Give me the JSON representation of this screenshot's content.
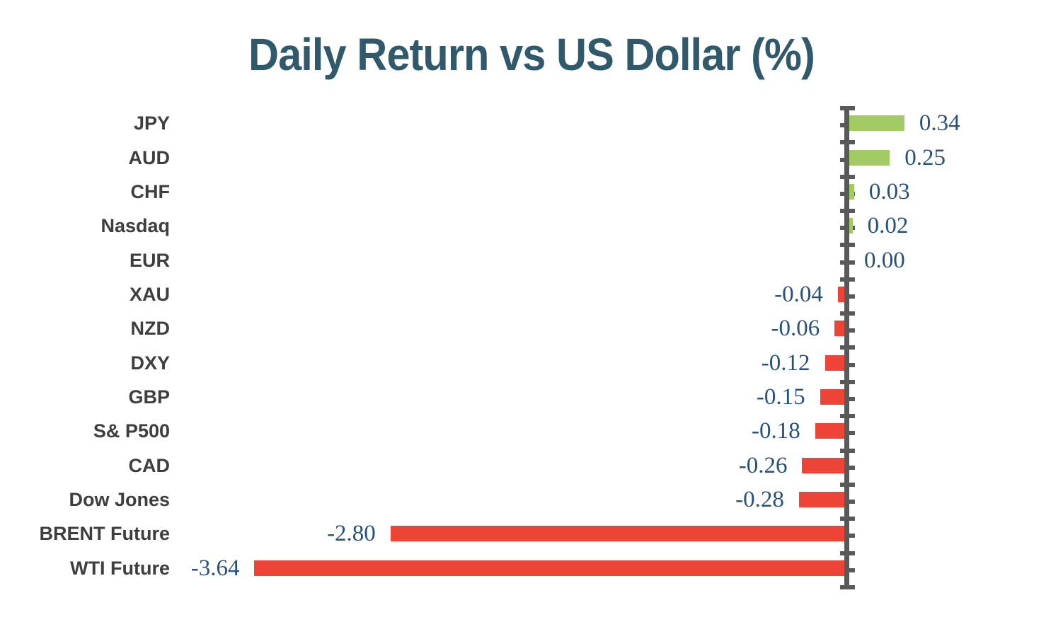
{
  "chart_data": {
    "type": "bar",
    "orientation": "horizontal",
    "title": "Daily Return vs US Dollar (%)",
    "xlabel": "",
    "ylabel": "",
    "grid": false,
    "legend": "none",
    "axis_range": [
      -3.64,
      0.34
    ],
    "categories": [
      "JPY",
      "AUD",
      "CHF",
      "Nasdaq",
      "EUR",
      "XAU",
      "NZD",
      "DXY",
      "GBP",
      "S& P500",
      "CAD",
      "Dow Jones",
      "BRENT Future",
      "WTI Future"
    ],
    "values": [
      0.34,
      0.25,
      0.03,
      0.02,
      0.0,
      -0.04,
      -0.06,
      -0.12,
      -0.15,
      -0.18,
      -0.26,
      -0.28,
      -2.8,
      -3.64
    ],
    "value_labels": [
      "0.34",
      "0.25",
      "0.03",
      "0.02",
      "0.00",
      "-0.04",
      "-0.06",
      "-0.12",
      "-0.15",
      "-0.18",
      "-0.26",
      "-0.28",
      "-2.80",
      "-3.64"
    ],
    "colors": {
      "positive_bar": "#A2CB63",
      "negative_bar": "#EE4438",
      "axis": "#595959",
      "value_text": "#27507D",
      "category_text": "#3E3E3E",
      "title_text": "#30596B"
    }
  }
}
